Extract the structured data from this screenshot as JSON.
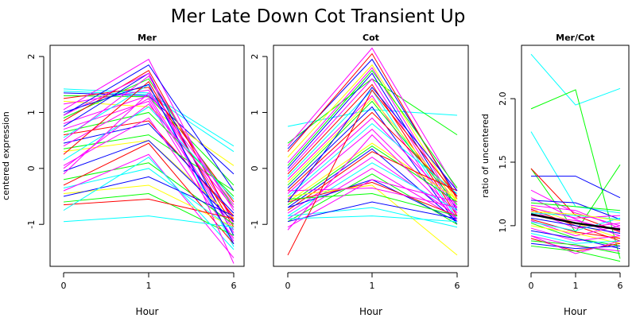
{
  "figure": {
    "title": "Mer Late Down Cot Transient Up"
  },
  "chart_data": [
    {
      "type": "line",
      "title": "Mer",
      "xlabel": "Hour",
      "ylabel": "centered expression",
      "categories": [
        "0",
        "1",
        "6"
      ],
      "yticks": [
        "-1",
        "0",
        "1",
        "2"
      ],
      "ylim": [
        -1.75,
        2.2
      ],
      "series": [
        {
          "color": "#00ffff",
          "values": [
            1.42,
            1.35,
            0.4
          ]
        },
        {
          "color": "#00ffff",
          "values": [
            1.38,
            1.32,
            0.3
          ]
        },
        {
          "color": "#0000ff",
          "values": [
            1.35,
            1.3,
            -0.1
          ]
        },
        {
          "color": "#00ff00",
          "values": [
            1.3,
            1.28,
            -0.3
          ]
        },
        {
          "color": "#ff0000",
          "values": [
            1.25,
            1.45,
            -0.6
          ]
        },
        {
          "color": "#ffff00",
          "values": [
            1.2,
            1.1,
            0.05
          ]
        },
        {
          "color": "#ff00ff",
          "values": [
            1.15,
            1.4,
            -0.9
          ]
        },
        {
          "color": "#ff00ff",
          "values": [
            1.05,
            1.95,
            -1.0
          ]
        },
        {
          "color": "#0000ff",
          "values": [
            0.95,
            1.85,
            -0.4
          ]
        },
        {
          "color": "#00ff00",
          "values": [
            0.9,
            1.6,
            -0.7
          ]
        },
        {
          "color": "#ff0000",
          "values": [
            0.85,
            1.75,
            -0.95
          ]
        },
        {
          "color": "#ff00ff",
          "values": [
            0.8,
            1.3,
            -1.1
          ]
        },
        {
          "color": "#0000ff",
          "values": [
            0.75,
            1.7,
            -1.2
          ]
        },
        {
          "color": "#ff00ff",
          "values": [
            0.7,
            1.2,
            -1.3
          ]
        },
        {
          "color": "#00ff00",
          "values": [
            0.65,
            1.0,
            -0.5
          ]
        },
        {
          "color": "#ff0000",
          "values": [
            0.6,
            0.85,
            -0.85
          ]
        },
        {
          "color": "#00ffff",
          "values": [
            0.55,
            1.5,
            -1.4
          ]
        },
        {
          "color": "#ff00ff",
          "values": [
            0.5,
            1.65,
            -0.75
          ]
        },
        {
          "color": "#0000ff",
          "values": [
            0.45,
            0.8,
            -0.8
          ]
        },
        {
          "color": "#ff00ff",
          "values": [
            0.4,
            1.25,
            -1.15
          ]
        },
        {
          "color": "#00ff00",
          "values": [
            0.35,
            0.6,
            -0.4
          ]
        },
        {
          "color": "#ffff00",
          "values": [
            0.3,
            0.5,
            -0.9
          ]
        },
        {
          "color": "#ff0000",
          "values": [
            0.25,
            1.55,
            -1.05
          ]
        },
        {
          "color": "#00ffff",
          "values": [
            0.15,
            1.1,
            -0.55
          ]
        },
        {
          "color": "#ff00ff",
          "values": [
            0.05,
            0.9,
            -1.25
          ]
        },
        {
          "color": "#0000ff",
          "values": [
            -0.05,
            0.5,
            -0.95
          ]
        },
        {
          "color": "#ff00ff",
          "values": [
            -0.1,
            1.35,
            -0.65
          ]
        },
        {
          "color": "#00ff00",
          "values": [
            -0.2,
            0.1,
            -1.0
          ]
        },
        {
          "color": "#ff0000",
          "values": [
            -0.3,
            0.45,
            -1.35
          ]
        },
        {
          "color": "#00ffff",
          "values": [
            -0.35,
            0.0,
            -1.1
          ]
        },
        {
          "color": "#ff00ff",
          "values": [
            -0.4,
            0.25,
            -1.6
          ]
        },
        {
          "color": "#ffff00",
          "values": [
            -0.45,
            -0.3,
            -1.05
          ]
        },
        {
          "color": "#0000ff",
          "values": [
            -0.5,
            -0.15,
            -0.85
          ]
        },
        {
          "color": "#00ff00",
          "values": [
            -0.6,
            -0.45,
            -1.2
          ]
        },
        {
          "color": "#ff0000",
          "values": [
            -0.65,
            -0.55,
            -0.9
          ]
        },
        {
          "color": "#00ffff",
          "values": [
            -0.75,
            0.2,
            -1.45
          ]
        },
        {
          "color": "#00ffff",
          "values": [
            -0.95,
            -0.85,
            -1.05
          ]
        },
        {
          "color": "#ff00ff",
          "values": [
            0.95,
            1.7,
            -1.7
          ]
        },
        {
          "color": "#0000ff",
          "values": [
            1.0,
            1.5,
            -1.35
          ]
        },
        {
          "color": "#ff00ff",
          "values": [
            0.0,
            1.15,
            -0.7
          ]
        }
      ]
    },
    {
      "type": "line",
      "title": "Cot",
      "xlabel": "Hour",
      "ylabel": "",
      "categories": [
        "0",
        "1",
        "6"
      ],
      "yticks": [
        "-1",
        "0",
        "1",
        "2"
      ],
      "ylim": [
        -1.75,
        2.2
      ],
      "series": [
        {
          "color": "#00ffff",
          "values": [
            0.75,
            1.05,
            0.95
          ]
        },
        {
          "color": "#00ff00",
          "values": [
            0.45,
            1.6,
            0.6
          ]
        },
        {
          "color": "#ff00ff",
          "values": [
            0.4,
            2.15,
            -0.4
          ]
        },
        {
          "color": "#0000ff",
          "values": [
            0.35,
            1.95,
            -0.5
          ]
        },
        {
          "color": "#ff0000",
          "values": [
            0.3,
            2.05,
            -0.55
          ]
        },
        {
          "color": "#ffff00",
          "values": [
            0.2,
            1.85,
            -0.6
          ]
        },
        {
          "color": "#ff00ff",
          "values": [
            0.1,
            1.8,
            -0.7
          ]
        },
        {
          "color": "#00ff00",
          "values": [
            0.05,
            1.75,
            -0.35
          ]
        },
        {
          "color": "#0000ff",
          "values": [
            0.0,
            1.7,
            -0.75
          ]
        },
        {
          "color": "#ff00ff",
          "values": [
            -0.05,
            1.6,
            -0.8
          ]
        },
        {
          "color": "#ff0000",
          "values": [
            -0.1,
            1.5,
            -0.85
          ]
        },
        {
          "color": "#00ffff",
          "values": [
            -0.15,
            1.4,
            -0.9
          ]
        },
        {
          "color": "#ff00ff",
          "values": [
            -0.2,
            1.3,
            -0.95
          ]
        },
        {
          "color": "#ffff00",
          "values": [
            -0.25,
            1.25,
            -0.6
          ]
        },
        {
          "color": "#00ff00",
          "values": [
            -0.3,
            1.2,
            -0.65
          ]
        },
        {
          "color": "#0000ff",
          "values": [
            -0.35,
            1.1,
            -1.0
          ]
        },
        {
          "color": "#ff0000",
          "values": [
            -0.4,
            1.0,
            -0.5
          ]
        },
        {
          "color": "#ff00ff",
          "values": [
            -0.45,
            0.9,
            -0.7
          ]
        },
        {
          "color": "#00ffff",
          "values": [
            -0.5,
            0.8,
            -0.45
          ]
        },
        {
          "color": "#ff00ff",
          "values": [
            -0.55,
            0.7,
            -0.8
          ]
        },
        {
          "color": "#ffff00",
          "values": [
            -0.6,
            0.45,
            -0.55
          ]
        },
        {
          "color": "#00ff00",
          "values": [
            -0.65,
            0.4,
            -0.6
          ]
        },
        {
          "color": "#0000ff",
          "values": [
            -0.7,
            0.35,
            -0.95
          ]
        },
        {
          "color": "#ff0000",
          "values": [
            -0.75,
            0.3,
            -0.4
          ]
        },
        {
          "color": "#ff00ff",
          "values": [
            -0.8,
            0.2,
            -0.85
          ]
        },
        {
          "color": "#00ffff",
          "values": [
            -0.85,
            0.1,
            -0.75
          ]
        },
        {
          "color": "#ff00ff",
          "values": [
            -0.9,
            0.0,
            -0.9
          ]
        },
        {
          "color": "#00ff00",
          "values": [
            -0.95,
            -0.1,
            -1.0
          ]
        },
        {
          "color": "#0000ff",
          "values": [
            -0.7,
            -0.2,
            -0.95
          ]
        },
        {
          "color": "#ff0000",
          "values": [
            -0.6,
            -0.25,
            -0.85
          ]
        },
        {
          "color": "#ffff00",
          "values": [
            -0.5,
            -0.3,
            -1.55
          ]
        },
        {
          "color": "#ff00ff",
          "values": [
            -0.4,
            -0.35,
            -0.7
          ]
        },
        {
          "color": "#00ffff",
          "values": [
            -0.85,
            -0.7,
            -1.05
          ]
        },
        {
          "color": "#0000ff",
          "values": [
            -0.95,
            -0.6,
            -0.9
          ]
        },
        {
          "color": "#00ff00",
          "values": [
            -0.55,
            -0.45,
            -0.85
          ]
        },
        {
          "color": "#ff00ff",
          "values": [
            -1.05,
            -0.2,
            -0.6
          ]
        },
        {
          "color": "#ff0000",
          "values": [
            -1.55,
            1.4,
            -0.5
          ]
        },
        {
          "color": "#ff00ff",
          "values": [
            -1.1,
            0.6,
            -0.9
          ]
        },
        {
          "color": "#0000ff",
          "values": [
            -0.6,
            1.45,
            -0.4
          ]
        },
        {
          "color": "#00ffff",
          "values": [
            -0.9,
            -0.85,
            -0.95
          ]
        }
      ]
    },
    {
      "type": "line",
      "title": "Mer/Cot",
      "xlabel": "Hour",
      "ylabel": "ratio of uncentered",
      "categories": [
        "0",
        "1",
        "6"
      ],
      "yticks": [
        "1.0",
        "1.5",
        "2.0"
      ],
      "ylim": [
        0.68,
        2.42
      ],
      "series": [
        {
          "color": "#00ffff",
          "values": [
            2.35,
            1.95,
            2.08
          ]
        },
        {
          "color": "#00ff00",
          "values": [
            1.92,
            2.07,
            0.74
          ]
        },
        {
          "color": "#00ffff",
          "values": [
            1.74,
            1.15,
            1.1
          ]
        },
        {
          "color": "#00ff00",
          "values": [
            1.45,
            0.95,
            1.48
          ]
        },
        {
          "color": "#0000ff",
          "values": [
            1.39,
            1.39,
            1.22
          ]
        },
        {
          "color": "#ff0000",
          "values": [
            1.45,
            1.08,
            0.95
          ]
        },
        {
          "color": "#ff00ff",
          "values": [
            1.28,
            1.1,
            1.0
          ]
        },
        {
          "color": "#ff00ff",
          "values": [
            1.22,
            1.05,
            0.92
          ]
        },
        {
          "color": "#0000ff",
          "values": [
            1.2,
            1.18,
            1.05
          ]
        },
        {
          "color": "#00ff00",
          "values": [
            1.18,
            1.15,
            1.12
          ]
        },
        {
          "color": "#ff00ff",
          "values": [
            1.16,
            1.12,
            0.98
          ]
        },
        {
          "color": "#ffff00",
          "values": [
            1.15,
            1.02,
            0.9
          ]
        },
        {
          "color": "#ff0000",
          "values": [
            1.13,
            1.0,
            0.88
          ]
        },
        {
          "color": "#ff00ff",
          "values": [
            1.12,
            0.98,
            1.02
          ]
        },
        {
          "color": "#00ffff",
          "values": [
            1.1,
            1.08,
            1.05
          ]
        },
        {
          "color": "#ff00ff",
          "values": [
            1.08,
            1.04,
            0.96
          ]
        },
        {
          "color": "#0000ff",
          "values": [
            1.06,
            1.0,
            0.94
          ]
        },
        {
          "color": "#ff0000",
          "values": [
            1.05,
            0.95,
            0.9
          ]
        },
        {
          "color": "#ff00ff",
          "values": [
            1.04,
            0.92,
            1.0
          ]
        },
        {
          "color": "#00ff00",
          "values": [
            1.02,
            0.9,
            0.84
          ]
        },
        {
          "color": "#ffff00",
          "values": [
            1.0,
            0.94,
            0.86
          ]
        },
        {
          "color": "#ff00ff",
          "values": [
            0.98,
            0.88,
            0.92
          ]
        },
        {
          "color": "#0000ff",
          "values": [
            0.96,
            0.9,
            0.82
          ]
        },
        {
          "color": "#00ffff",
          "values": [
            0.94,
            0.86,
            0.88
          ]
        },
        {
          "color": "#ff00ff",
          "values": [
            0.92,
            0.84,
            0.8
          ]
        },
        {
          "color": "#ff0000",
          "values": [
            0.9,
            0.8,
            0.86
          ]
        },
        {
          "color": "#00ff00",
          "values": [
            0.88,
            0.85,
            0.78
          ]
        },
        {
          "color": "#0000ff",
          "values": [
            0.86,
            0.82,
            0.84
          ]
        },
        {
          "color": "#ff00ff",
          "values": [
            0.92,
            0.78,
            0.88
          ]
        },
        {
          "color": "#00ffff",
          "values": [
            1.03,
            0.96,
            1.06
          ]
        },
        {
          "color": "#ff00ff",
          "values": [
            1.14,
            1.06,
            1.08
          ]
        },
        {
          "color": "#ffff00",
          "values": [
            1.11,
            1.09,
            1.04
          ]
        },
        {
          "color": "#00ff00",
          "values": [
            0.84,
            0.8,
            0.72
          ]
        },
        {
          "color": "#000000",
          "values": [
            1.09,
            1.02,
            0.97
          ],
          "bold": true
        }
      ]
    }
  ]
}
